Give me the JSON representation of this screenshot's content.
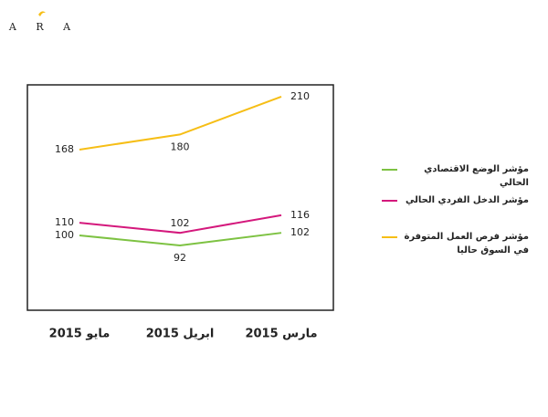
{
  "brand": "A R A",
  "chart_data": {
    "type": "line",
    "categories": [
      "مايو 2015",
      "ابريل 2015",
      "مارس 2015"
    ],
    "series": [
      {
        "name": "مؤشر الوضع الاقتصادي الحالي",
        "color": "#7dc242",
        "values": [
          100,
          92,
          102
        ]
      },
      {
        "name": "مؤشر الدخل الفردي الحالي",
        "color": "#d4187c",
        "values": [
          110,
          102,
          116
        ]
      },
      {
        "name": "مؤشر فرص العمل المتوفرة في السوق حاليا",
        "color": "#f6be16",
        "values": [
          168,
          180,
          210
        ]
      }
    ]
  }
}
